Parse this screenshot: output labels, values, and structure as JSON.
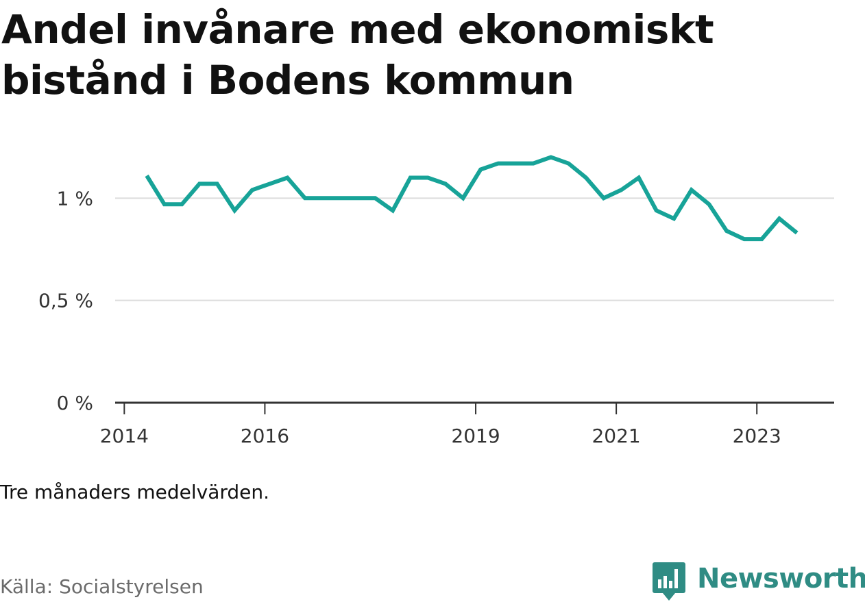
{
  "title": "Andel invånare med ekonomiskt bistånd i Bodens kommun",
  "note": "Tre månaders medelvärden.",
  "source": "Källa: Socialstyrelsen",
  "brand": {
    "name": "Newsworthy",
    "icon": "bar-chart-speech-bubble-icon",
    "color": "#2f8c84"
  },
  "chart_data": {
    "type": "line",
    "title": "Andel invånare med ekonomiskt bistånd i Bodens kommun",
    "xlabel": "",
    "ylabel": "",
    "grid": true,
    "legend": "none",
    "line_color": "#17a398",
    "ylim": [
      0,
      1.5
    ],
    "y_ticks": [
      {
        "value": 0,
        "label": "0 %"
      },
      {
        "value": 0.5,
        "label": "0,5 %"
      },
      {
        "value": 1,
        "label": "1 %"
      }
    ],
    "x_ticks": [
      {
        "value": 2014.0,
        "label": "2014"
      },
      {
        "value": 2016.0,
        "label": "2016"
      },
      {
        "value": 2019.0,
        "label": "2019"
      },
      {
        "value": 2021.0,
        "label": "2021"
      },
      {
        "value": 2023.0,
        "label": "2023"
      }
    ],
    "x_range": [
      2013.87,
      2024.1
    ],
    "x": [
      2014.32,
      2014.57,
      2014.82,
      2015.07,
      2015.32,
      2015.57,
      2015.82,
      2016.07,
      2016.32,
      2016.57,
      2016.82,
      2017.07,
      2017.32,
      2017.57,
      2017.82,
      2018.07,
      2018.32,
      2018.57,
      2018.82,
      2019.07,
      2019.32,
      2019.57,
      2019.82,
      2020.07,
      2020.32,
      2020.57,
      2020.82,
      2021.07,
      2021.32,
      2021.57,
      2021.82,
      2022.07,
      2022.32,
      2022.57,
      2022.82,
      2023.07,
      2023.32,
      2023.57
    ],
    "series": [
      {
        "name": "",
        "values": [
          1.11,
          0.97,
          0.97,
          1.07,
          1.07,
          0.94,
          1.04,
          1.07,
          1.1,
          1.0,
          1.0,
          1.0,
          1.0,
          1.0,
          0.94,
          1.1,
          1.1,
          1.07,
          1.0,
          1.14,
          1.17,
          1.17,
          1.17,
          1.2,
          1.17,
          1.1,
          1.0,
          1.04,
          1.1,
          0.94,
          0.9,
          1.04,
          0.97,
          0.84,
          0.8,
          0.8,
          0.9,
          0.83
        ]
      }
    ]
  }
}
